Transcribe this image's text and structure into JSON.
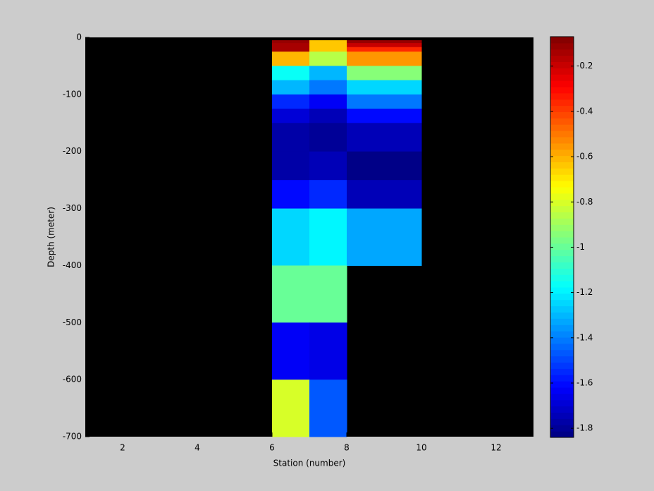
{
  "chart_data": {
    "type": "heatmap",
    "x_label": "Station (number)",
    "y_label": "Depth (meter)",
    "x_edges": [
      6,
      7,
      8,
      10
    ],
    "y_edges": [
      -5,
      -10,
      -17,
      -25,
      -50,
      -75,
      -100,
      -125,
      -150,
      -200,
      -250,
      -300,
      -400,
      -500,
      -600,
      -700
    ],
    "values": [
      [
        -0.1,
        -0.65,
        -0.1
      ],
      [
        -0.15,
        -0.65,
        -0.2
      ],
      [
        -0.15,
        -0.65,
        -0.35
      ],
      [
        -0.6,
        -0.85,
        -0.55
      ],
      [
        -1.15,
        -1.3,
        -0.95
      ],
      [
        -1.3,
        -1.42,
        -1.25
      ],
      [
        -1.55,
        -1.63,
        -1.4
      ],
      [
        -1.7,
        -1.75,
        -1.6
      ],
      [
        -1.78,
        -1.8,
        -1.75
      ],
      [
        -1.78,
        -1.75,
        -1.83
      ],
      [
        -1.6,
        -1.55,
        -1.74
      ],
      [
        -1.25,
        -1.18,
        -1.32
      ],
      [
        -1.0,
        -1.0,
        null
      ],
      [
        -1.62,
        -1.66,
        null
      ],
      [
        -0.8,
        -1.47,
        null
      ]
    ],
    "colormap": "jet",
    "colormap_levels": 64,
    "background_color": "#000000",
    "xlim": [
      1,
      13
    ],
    "xticks": [
      2,
      4,
      6,
      8,
      10,
      12
    ],
    "ylim": [
      -700,
      0
    ],
    "yticks": [
      0,
      -100,
      -200,
      -300,
      -400,
      -500,
      -600,
      -700
    ],
    "clim": [
      -1.84,
      -0.07
    ],
    "colorbar_ticks": [
      -0.2,
      -0.4,
      -0.6,
      -0.8,
      -1,
      -1.2,
      -1.4,
      -1.6,
      -1.8
    ]
  }
}
